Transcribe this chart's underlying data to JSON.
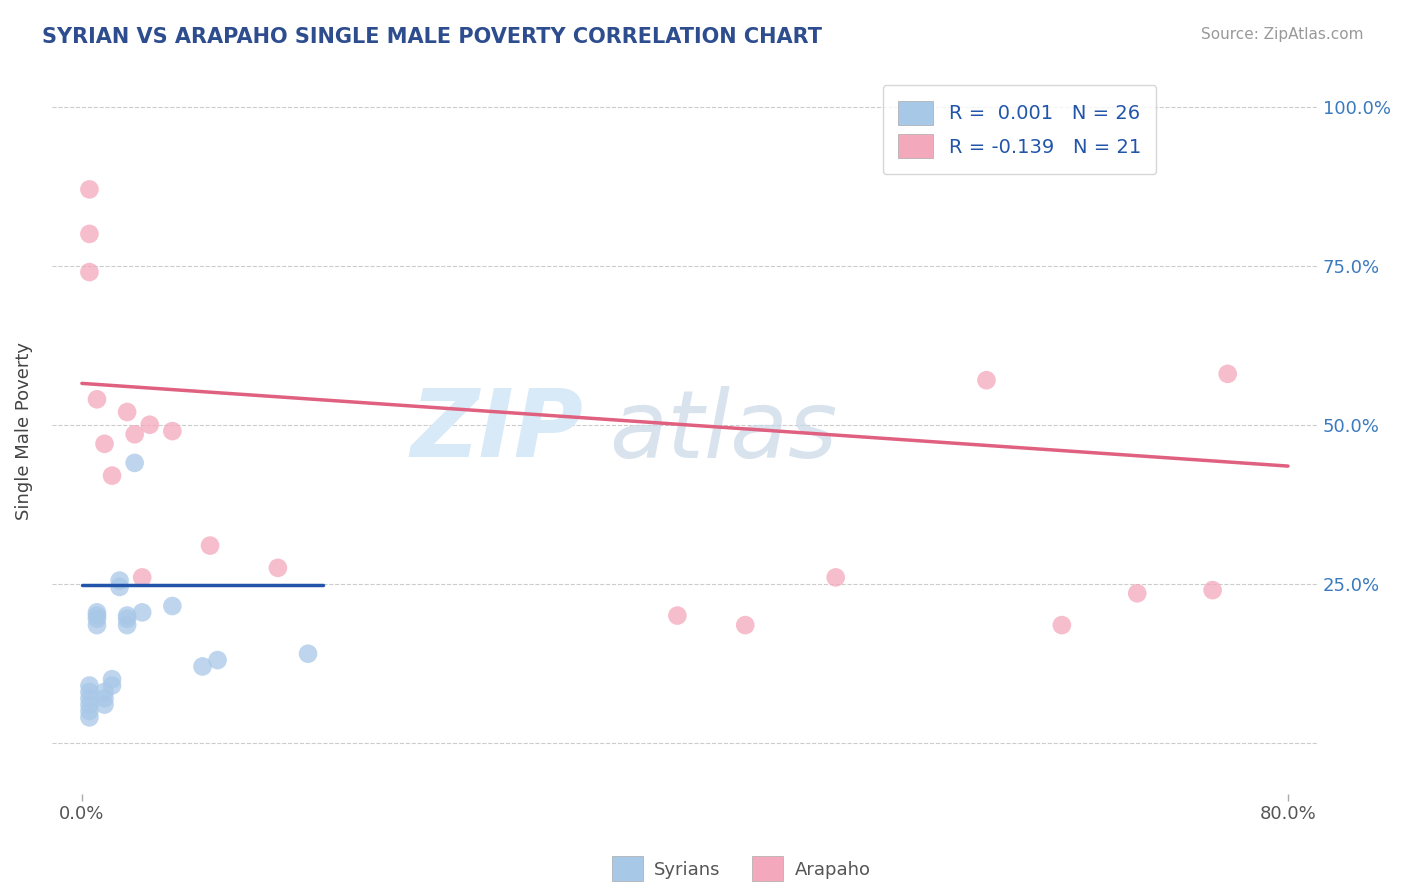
{
  "title": "SYRIAN VS ARAPAHO SINGLE MALE POVERTY CORRELATION CHART",
  "source": "Source: ZipAtlas.com",
  "ylabel": "Single Male Poverty",
  "xlim": [
    -0.02,
    0.82
  ],
  "ylim": [
    -0.08,
    1.06
  ],
  "ytick_positions": [
    0.0,
    0.25,
    0.5,
    0.75,
    1.0
  ],
  "yticklabels_right": [
    "",
    "25.0%",
    "50.0%",
    "75.0%",
    "100.0%"
  ],
  "syrian_color": "#a8c8e8",
  "arapaho_color": "#f4a8bc",
  "syrian_line_color": "#2255aa",
  "arapaho_line_color": "#e06080",
  "R_syrian": 0.001,
  "N_syrian": 26,
  "R_arapaho": -0.139,
  "N_arapaho": 21,
  "legend_label_color": "#2255aa",
  "watermark_color": "#d8eaf8",
  "syrian_x": [
    0.005,
    0.005,
    0.005,
    0.005,
    0.005,
    0.005,
    0.01,
    0.01,
    0.01,
    0.01,
    0.015,
    0.015,
    0.015,
    0.02,
    0.02,
    0.025,
    0.025,
    0.03,
    0.03,
    0.03,
    0.035,
    0.04,
    0.06,
    0.08,
    0.09,
    0.15
  ],
  "syrian_y": [
    0.04,
    0.05,
    0.06,
    0.07,
    0.08,
    0.09,
    0.185,
    0.195,
    0.2,
    0.205,
    0.06,
    0.07,
    0.08,
    0.09,
    0.1,
    0.245,
    0.255,
    0.185,
    0.195,
    0.2,
    0.44,
    0.205,
    0.215,
    0.12,
    0.13,
    0.14
  ],
  "arapaho_x": [
    0.005,
    0.005,
    0.005,
    0.01,
    0.015,
    0.02,
    0.03,
    0.035,
    0.04,
    0.045,
    0.06,
    0.085,
    0.13,
    0.395,
    0.44,
    0.5,
    0.6,
    0.65,
    0.7,
    0.75,
    0.76
  ],
  "arapaho_y": [
    0.87,
    0.8,
    0.74,
    0.54,
    0.47,
    0.42,
    0.52,
    0.485,
    0.26,
    0.5,
    0.49,
    0.31,
    0.275,
    0.2,
    0.185,
    0.26,
    0.57,
    0.185,
    0.235,
    0.24,
    0.58
  ],
  "bg_color": "#ffffff",
  "grid_color": "#cccccc",
  "title_color": "#2d4d8e",
  "syrian_line_x": [
    0.0,
    0.16
  ],
  "arapaho_line_x": [
    0.0,
    0.8
  ],
  "syrian_line_y_start": 0.248,
  "syrian_line_y_end": 0.248,
  "arapaho_line_y_start": 0.565,
  "arapaho_line_y_end": 0.435
}
